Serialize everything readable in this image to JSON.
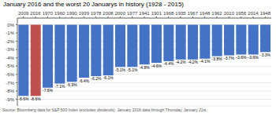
{
  "chart_data": {
    "type": "bar",
    "title": "January 2016 and the worst 20 Januarys in history (1928 - 2015)",
    "annotations": [
      "Source: Bloomberg data for S&P 500 Index (excludes dividends). January 2016 data through Thursday, January 21st."
    ],
    "categories": [
      "2009",
      "2016",
      "1970",
      "1960",
      "1990",
      "1939",
      "1978",
      "2008",
      "2000",
      "1977",
      "1941",
      "1901",
      "1968",
      "1935",
      "1967",
      "1948",
      "1962",
      "2010",
      "1956",
      "2014",
      "1948"
    ],
    "values": [
      -8.6,
      -8.6,
      -7.6,
      -7.1,
      -6.9,
      -6.4,
      -6.2,
      -6.1,
      -5.1,
      -5.1,
      -4.8,
      -4.6,
      -4.4,
      -4.2,
      -4.2,
      -4.1,
      -3.8,
      -3.7,
      -3.6,
      -3.6,
      -3.3
    ],
    "value_labels": [
      "-8.6%",
      "-8.6%",
      "-7.6%",
      "-7.1%",
      "-6.9%",
      "-6.4%",
      "-6.2%",
      "-6.1%",
      "-5.1%",
      "-5.1%",
      "-4.8%",
      "-4.6%",
      "-4.4%",
      "-4.2%",
      "-4.2%",
      "-4.1%",
      "-3.8%",
      "-3.7%",
      "-3.6%",
      "-3.6%",
      "-3.3%"
    ],
    "colors": [
      "#4472C4",
      "#C0504D",
      "#4472C4",
      "#4472C4",
      "#4472C4",
      "#4472C4",
      "#4472C4",
      "#4472C4",
      "#4472C4",
      "#4472C4",
      "#4472C4",
      "#4472C4",
      "#4472C4",
      "#4472C4",
      "#4472C4",
      "#4472C4",
      "#4472C4",
      "#4472C4",
      "#4472C4",
      "#4472C4",
      "#4472C4"
    ],
    "ylim": [
      -9.8,
      0.8
    ],
    "yticks": [
      {
        "value": 0,
        "label": "0%"
      },
      {
        "value": -1,
        "label": "-1%"
      },
      {
        "value": -2,
        "label": "-2%"
      },
      {
        "value": -3,
        "label": "-3%"
      },
      {
        "value": -4,
        "label": "-4%"
      },
      {
        "value": -5,
        "label": "-5%"
      },
      {
        "value": -6,
        "label": "-6%"
      },
      {
        "value": -7,
        "label": "-7%"
      },
      {
        "value": -8,
        "label": "-8%"
      },
      {
        "value": -9,
        "label": "-9%"
      }
    ],
    "grid": true,
    "data_labels": true
  }
}
